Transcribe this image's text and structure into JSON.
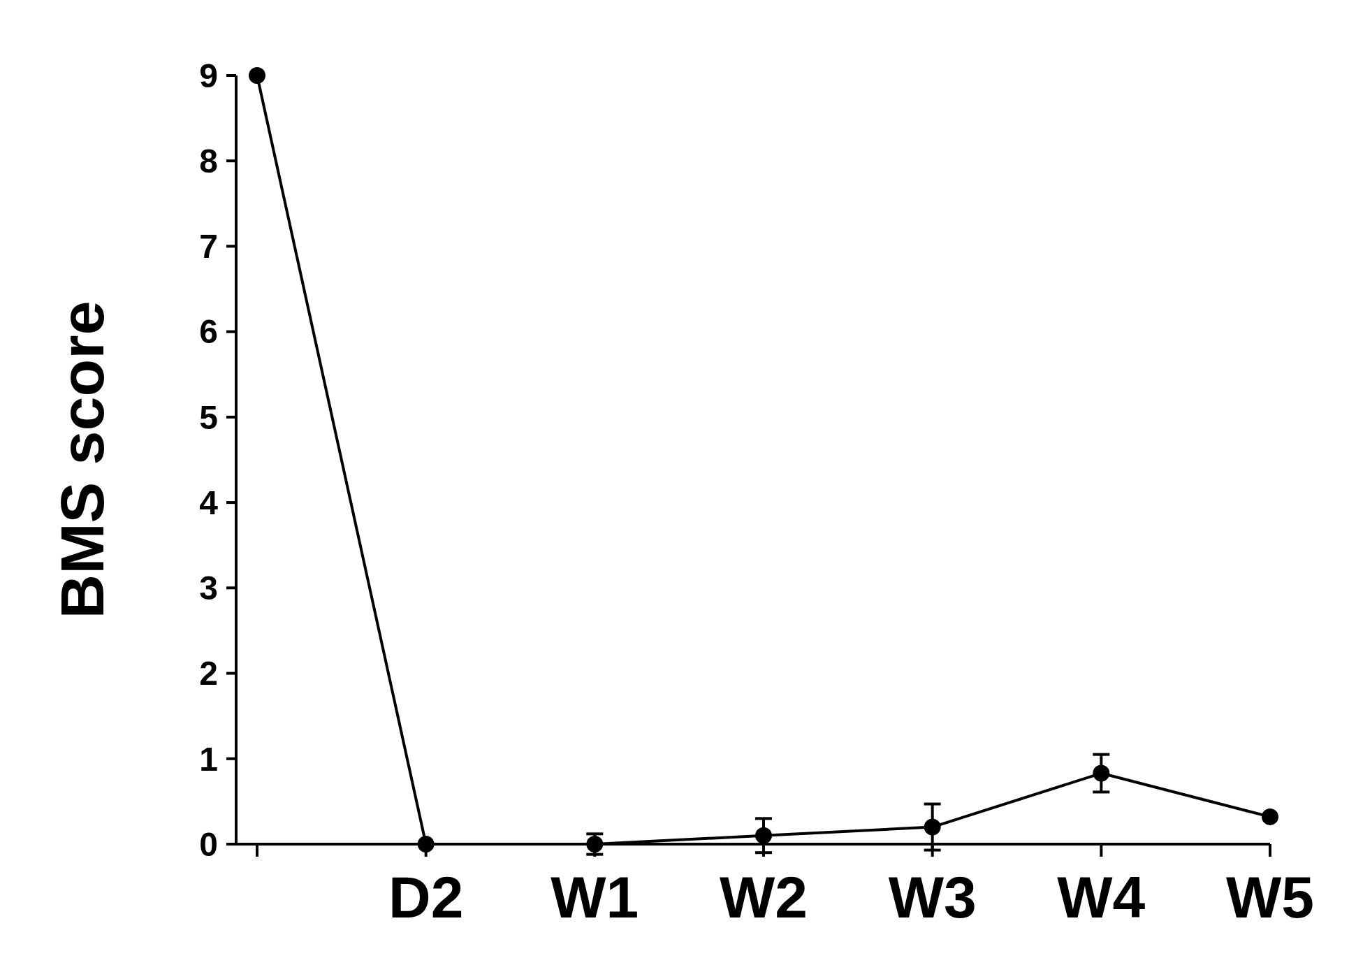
{
  "chart_data": {
    "type": "line",
    "ylabel": "BMS score",
    "categories": [
      null,
      "D2",
      "W1",
      "W2",
      "W3",
      "W4",
      "W5"
    ],
    "series": [
      {
        "color": "#000000",
        "values": [
          9,
          0,
          0,
          0.1,
          0.2,
          0.83,
          0.32
        ],
        "errors": [
          null,
          null,
          0.12,
          0.2,
          0.27,
          0.22,
          null
        ]
      }
    ],
    "ylim": [
      0,
      9
    ],
    "yticks": [
      0,
      1,
      2,
      3,
      4,
      5,
      6,
      7,
      8,
      9
    ],
    "marker": "circle",
    "line_style": "solid"
  }
}
